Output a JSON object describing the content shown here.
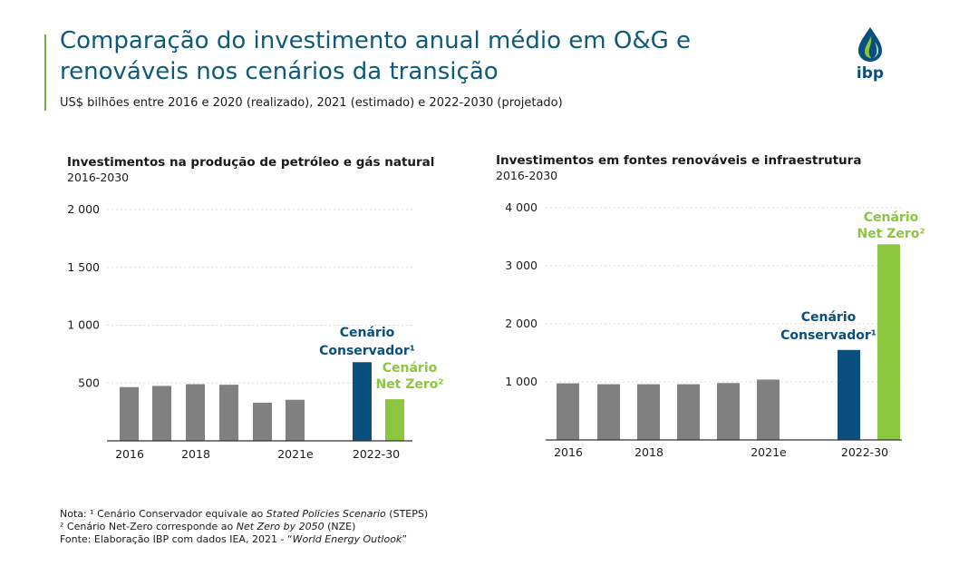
{
  "page": {
    "title_line1": "Comparação do investimento anual médio em O&G e",
    "title_line2": "renováveis nos cenários da transição",
    "subtitle": "US$ bilhões entre 2016 e 2020 (realizado), 2021 (estimado) e 2022-2030 (projetado)",
    "logo_text": "ibp"
  },
  "colors": {
    "title": "#0d5a7a",
    "accent": "#6cb33f",
    "bar_gray": "#808080",
    "conservador": "#0a4f7d",
    "netzero": "#8cc63f",
    "grid": "#d9d9d9"
  },
  "chart_data": [
    {
      "type": "bar",
      "title": "Investimentos na produção de petróleo e gás natural",
      "subtitle": "2016-2030",
      "categories": [
        "2016",
        "2017",
        "2018",
        "2019",
        "2020",
        "2021e",
        "2022-30 Conservador",
        "2022-30 Net Zero"
      ],
      "values": [
        465,
        475,
        490,
        485,
        330,
        355,
        680,
        360
      ],
      "colors": [
        "gray",
        "gray",
        "gray",
        "gray",
        "gray",
        "gray",
        "conservador",
        "netzero"
      ],
      "x_tick_labels": [
        "2016",
        "2018",
        "2021e",
        "2022-30"
      ],
      "yticks": [
        500,
        1000,
        1500,
        2000
      ],
      "ytick_labels": [
        "500",
        "1 000",
        "1 500",
        "2 000"
      ],
      "ylim": [
        0,
        2000
      ],
      "annotations": {
        "conservador": [
          "Cenário",
          "Conservador¹"
        ],
        "netzero": [
          "Cenário",
          "Net Zero²"
        ]
      }
    },
    {
      "type": "bar",
      "title": "Investimentos em fontes renováveis e infraestrutura",
      "subtitle": "2016-2030",
      "categories": [
        "2016",
        "2017",
        "2018",
        "2019",
        "2020",
        "2021e",
        "2022-30 Conservador",
        "2022-30 Net Zero"
      ],
      "values": [
        975,
        960,
        960,
        960,
        980,
        1040,
        1550,
        3370
      ],
      "colors": [
        "gray",
        "gray",
        "gray",
        "gray",
        "gray",
        "gray",
        "conservador",
        "netzero"
      ],
      "x_tick_labels": [
        "2016",
        "2018",
        "2021e",
        "2022-30"
      ],
      "yticks": [
        1000,
        2000,
        3000,
        4000
      ],
      "ytick_labels": [
        "1 000",
        "2 000",
        "3 000",
        "4 000"
      ],
      "ylim": [
        0,
        4000
      ],
      "annotations": {
        "conservador": [
          "Cenário",
          "Conservador¹"
        ],
        "netzero": [
          "Cenário",
          "Net Zero²"
        ]
      }
    }
  ],
  "notes": {
    "note1_prefix": "Nota: ¹ Cenário Conservador equivale ao ",
    "note1_italic": "Stated Policies Scenario",
    "note1_suffix": " (STEPS)",
    "note2_prefix": "² Cenário Net-Zero corresponde ao ",
    "note2_italic": "Net Zero by 2050",
    "note2_suffix": " (NZE)",
    "source_prefix": "Fonte: Elaboração IBP com dados IEA, 2021 - “",
    "source_italic": "World Energy Outlook",
    "source_suffix": "”"
  }
}
